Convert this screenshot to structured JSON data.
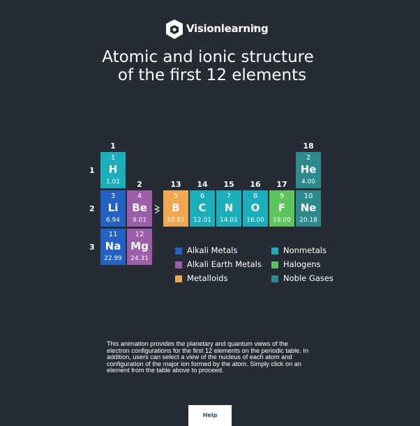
{
  "logo": {
    "text": "Visionlearning",
    "mark": "®"
  },
  "title": [
    "Atomic and ionic structure",
    "of the first 12 elements"
  ],
  "table": {
    "groups": [
      "1",
      "2",
      "13",
      "14",
      "15",
      "16",
      "17",
      "18"
    ],
    "periods": [
      "1",
      "2",
      "3"
    ],
    "elements": [
      {
        "number": 1,
        "symbol": "H",
        "mass": "1.01",
        "color": "#1aaebb"
      },
      {
        "number": 2,
        "symbol": "He",
        "mass": "4.00",
        "color": "#2d8a8c"
      },
      {
        "number": 3,
        "symbol": "Li",
        "mass": "6.94",
        "color": "#2262c4"
      },
      {
        "number": 4,
        "symbol": "Be",
        "mass": "9.01",
        "color": "#9c5ea8"
      },
      {
        "number": 5,
        "symbol": "B",
        "mass": "10.81",
        "color": "#f0a850"
      },
      {
        "number": 6,
        "symbol": "C",
        "mass": "12.01",
        "color": "#1aaebb"
      },
      {
        "number": 7,
        "symbol": "N",
        "mass": "14.01",
        "color": "#1aaebb"
      },
      {
        "number": 8,
        "symbol": "O",
        "mass": "16.00",
        "color": "#1aaebb"
      },
      {
        "number": 9,
        "symbol": "F",
        "mass": "19.00",
        "color": "#5cc45c"
      },
      {
        "number": 10,
        "symbol": "Ne",
        "mass": "20.18",
        "color": "#2d8a8c"
      },
      {
        "number": 11,
        "symbol": "Na",
        "mass": "22.99",
        "color": "#2262c4"
      },
      {
        "number": 12,
        "symbol": "Mg",
        "mass": "24.31",
        "color": "#9c5ea8"
      }
    ]
  },
  "legend": [
    {
      "name": "Alkali Metals",
      "color": "#2262c4"
    },
    {
      "name": "Alkali Earth Metals",
      "color": "#9c5ea8"
    },
    {
      "name": "Metalloids",
      "color": "#f0a850"
    },
    {
      "name": "Nonmetals",
      "color": "#1aaebb"
    },
    {
      "name": "Halogens",
      "color": "#5cc45c"
    },
    {
      "name": "Noble Gases",
      "color": "#2d8a8c"
    }
  ],
  "description": "This animation provides the planetary and quantum views of the electron configurations for the first 12 elements on the periodic table. In addition, users can select a view of the nucleus of each atom and configuration of the major ion formed by the atom. Simply click on an element from the table above to proceed.",
  "help_button": "Help"
}
